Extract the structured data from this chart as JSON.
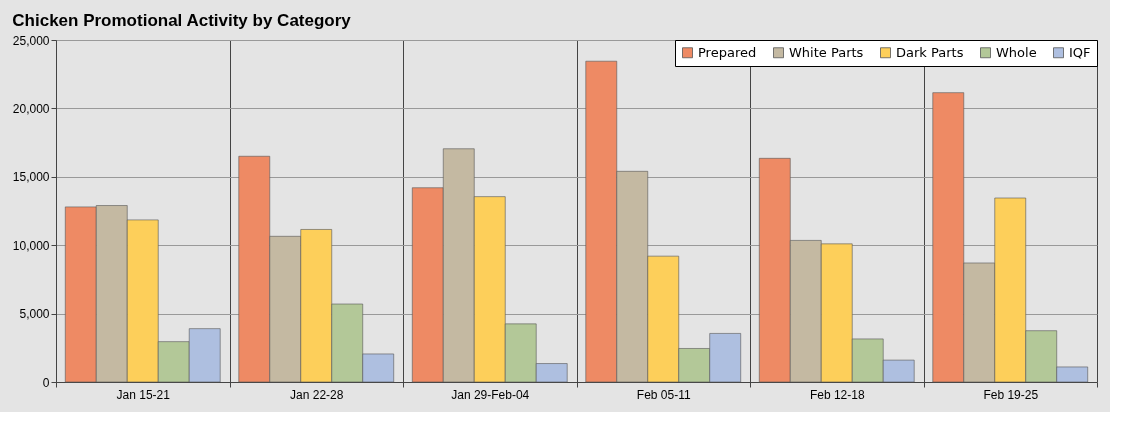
{
  "chart_data": {
    "type": "bar",
    "title": "Chicken Promotional Activity by Category",
    "categories": [
      "Jan 15-21",
      "Jan 22-28",
      "Jan 29-Feb-04",
      "Feb 05-11",
      "Feb 12-18",
      "Feb 19-25"
    ],
    "series": [
      {
        "name": "Prepared",
        "color": "#ee8a64",
        "values": [
          12800,
          16500,
          14200,
          23450,
          16350,
          21150
        ]
      },
      {
        "name": "White Parts",
        "color": "#c4b9a2",
        "values": [
          12900,
          10650,
          17050,
          15400,
          10350,
          8700
        ]
      },
      {
        "name": "Dark Parts",
        "color": "#fdcf5a",
        "values": [
          11850,
          11150,
          13550,
          9200,
          10100,
          13450
        ]
      },
      {
        "name": "Whole",
        "color": "#b3c898",
        "values": [
          2950,
          5700,
          4250,
          2450,
          3150,
          3750
        ]
      },
      {
        "name": "IQF",
        "color": "#aebfe0",
        "values": [
          3900,
          2050,
          1350,
          3550,
          1600,
          1100
        ]
      }
    ],
    "ylim": [
      0,
      25000
    ],
    "yticks": [
      {
        "value": 0,
        "label": "0"
      },
      {
        "value": 5000,
        "label": "5,000"
      },
      {
        "value": 10000,
        "label": "10,000"
      },
      {
        "value": 15000,
        "label": "15,000"
      },
      {
        "value": 20000,
        "label": "20,000"
      },
      {
        "value": 25000,
        "label": "25,000"
      }
    ],
    "grid": true,
    "legend": "top right"
  }
}
